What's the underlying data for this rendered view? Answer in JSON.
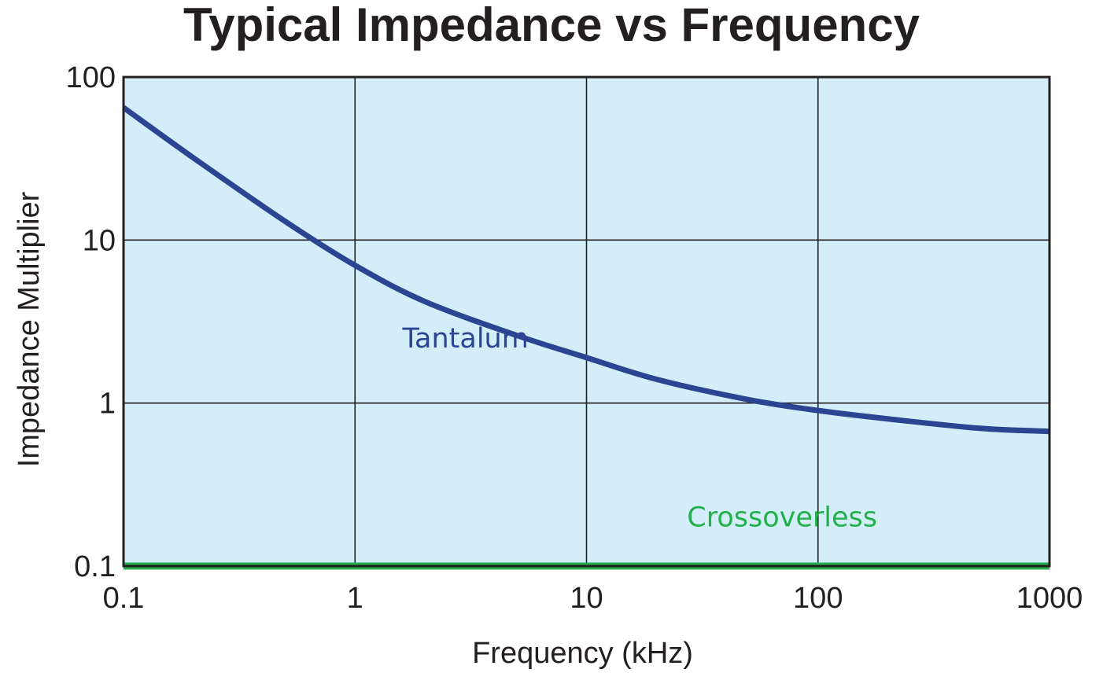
{
  "chart_data": {
    "type": "line",
    "title": "Typical Impedance vs Frequency",
    "xlabel": "Frequency (kHz)",
    "ylabel": "Impedance Multiplier",
    "xscale": "log",
    "yscale": "log",
    "xlim": [
      0.1,
      1000
    ],
    "ylim": [
      0.1,
      100
    ],
    "x_ticks": [
      0.1,
      1,
      10,
      100,
      1000
    ],
    "x_tick_labels": [
      "0.1",
      "1",
      "10",
      "100",
      "1000"
    ],
    "y_ticks": [
      0.1,
      1,
      10,
      100
    ],
    "y_tick_labels": [
      "0.1",
      "1",
      "10",
      "100"
    ],
    "grid": true,
    "background_color": "#d4eef9",
    "series": [
      {
        "name": "Tantalum",
        "color": "#2b4592",
        "x": [
          0.1,
          0.2,
          0.5,
          1,
          2,
          5,
          10,
          20,
          50,
          100,
          200,
          500,
          1000
        ],
        "y": [
          65,
          32,
          13,
          7,
          4.2,
          2.6,
          1.9,
          1.4,
          1.05,
          0.9,
          0.8,
          0.7,
          0.67
        ]
      },
      {
        "name": "Crossoverless",
        "color": "#22b04b",
        "x": [
          0.1,
          1000
        ],
        "y": [
          0.1,
          0.1
        ]
      }
    ],
    "annotations": [
      {
        "text": "Tantalum",
        "x": 3,
        "y": 2.5,
        "color": "#2b4592"
      },
      {
        "text": "Crossoverless",
        "x": 70,
        "y": 0.2,
        "color": "#22b04b"
      }
    ]
  }
}
